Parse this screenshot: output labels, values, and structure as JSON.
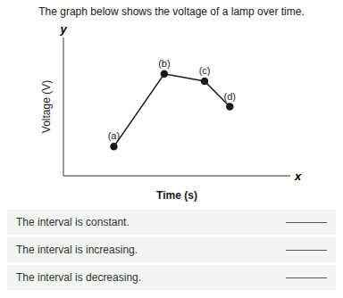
{
  "chart_data": {
    "type": "line",
    "title": "The graph below shows the voltage of a lamp over time.",
    "x_label": "Time (s)",
    "y_label": "Voltage (V)",
    "x": [
      1.0,
      2.0,
      2.8,
      3.3
    ],
    "values": [
      0.8,
      2.8,
      2.6,
      1.9
    ],
    "color": "#1a1a1a",
    "marker": "o",
    "line_style": "solid",
    "xlim": [
      0,
      4.5
    ],
    "ylim": [
      0,
      3.8
    ],
    "xticks": [],
    "yticks": [],
    "tick_labels": false,
    "grid": false,
    "annotations": [
      {
        "text": "(a)",
        "x": 1.0,
        "y": 0.8
      },
      {
        "text": "(b)",
        "x": 2.0,
        "y": 2.8
      },
      {
        "text": "(c)",
        "x": 2.8,
        "y": 2.6
      },
      {
        "text": "(d)",
        "x": 3.3,
        "y": 1.9
      }
    ],
    "axis_end_labels": [
      "x",
      "y"
    ],
    "answer_rows": [
      "The interval is constant.",
      "The interval is increasing.",
      "The interval is decreasing."
    ]
  }
}
